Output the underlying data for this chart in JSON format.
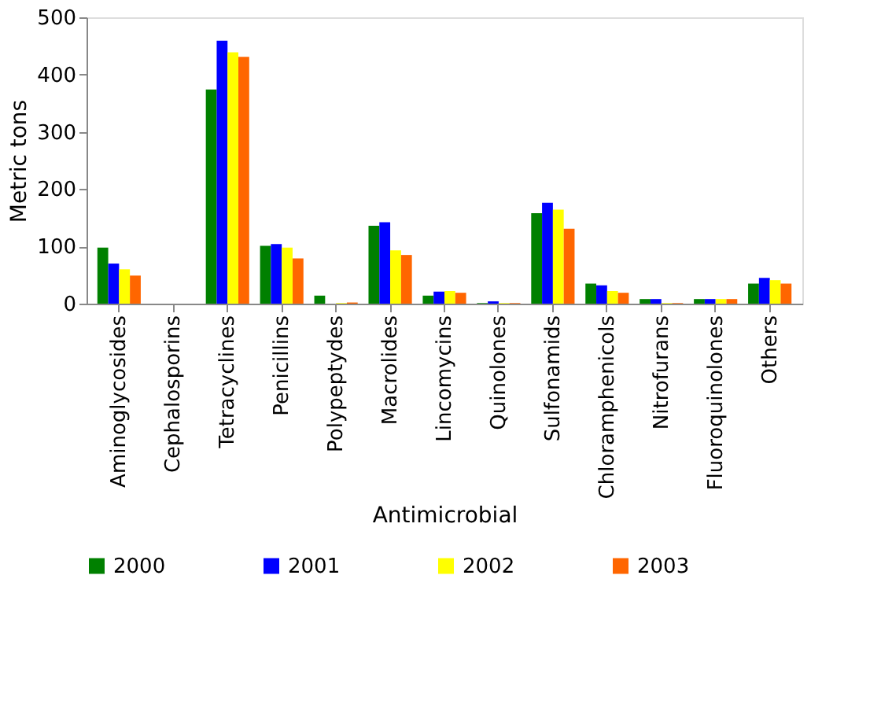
{
  "chart_data": {
    "type": "bar",
    "xlabel": "Antimicrobial",
    "ylabel": "Metric tons",
    "categories": [
      "Aminoglycosides",
      "Cephalosporins",
      "Tetracyclines",
      "Penicillins",
      "Polypeptydes",
      "Macrolides",
      "Lincomycins",
      "Quinolones",
      "Sulfonamids",
      "Chloramphenicols",
      "Nitrofurans",
      "Fluoroquinolones",
      "Others"
    ],
    "series": [
      {
        "name": "2000",
        "color": "#008000",
        "values": [
          98,
          0,
          374,
          101,
          14,
          136,
          14,
          1,
          158,
          35,
          8,
          8,
          35
        ]
      },
      {
        "name": "2001",
        "color": "#0000ff",
        "values": [
          70,
          0,
          459,
          104,
          0,
          142,
          21,
          4,
          176,
          32,
          8,
          8,
          45
        ]
      },
      {
        "name": "2002",
        "color": "#ffff00",
        "values": [
          60,
          0,
          439,
          98,
          1,
          93,
          22,
          1,
          164,
          22,
          1,
          8,
          41
        ]
      },
      {
        "name": "2003",
        "color": "#ff6600",
        "values": [
          49,
          0,
          431,
          79,
          2,
          85,
          19,
          1,
          131,
          19,
          1,
          8,
          35
        ]
      }
    ],
    "ylim": [
      0,
      500
    ],
    "yticks": [
      0,
      100,
      200,
      300,
      400,
      500
    ],
    "grid": false,
    "legend": "bottom"
  }
}
